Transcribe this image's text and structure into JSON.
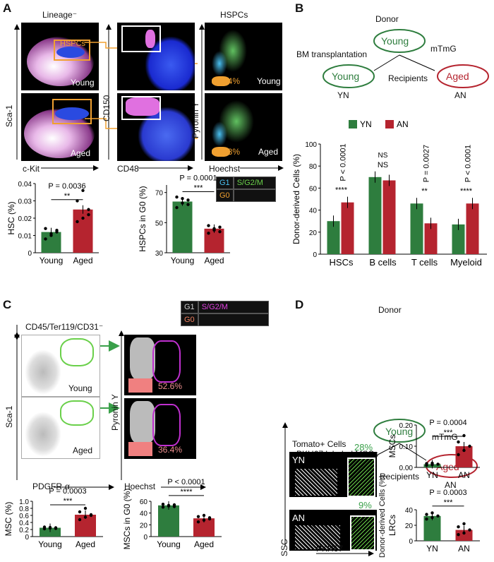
{
  "panels": {
    "A": {
      "label": "A",
      "lineage_label": "Lineage⁻",
      "hspc_gate_label": "HSPCs",
      "young": "Young",
      "aged": "Aged",
      "axis_sca1": "Sca-1",
      "axis_ckit": "c-Kit",
      "axis_cd150": "CD150",
      "axis_cd48": "CD48",
      "hspcs_title": "HSPCs",
      "axis_pyronin": "Pyronin Y",
      "axis_hoechst": "Hoechst",
      "pct_young": "64%",
      "pct_aged": "48%",
      "legend": {
        "g1": "G1",
        "sgm": "S/G2/M",
        "g0": "G0"
      }
    },
    "B": {
      "label": "B",
      "donor": "Donor",
      "young_mouse": "Young",
      "mtmg": "mTmG",
      "bm_transplant": "BM transplantation",
      "recipients": "Recipients",
      "aged_mouse": "Aged",
      "yn": "YN",
      "an": "AN"
    },
    "C": {
      "label": "C",
      "gate_label": "CD45/Ter119/CD31⁻",
      "young": "Young",
      "aged": "Aged",
      "axis_sca1": "Sca-1",
      "axis_pdgfra": "PDGFR-α",
      "axis_pyronin": "Pyronin Y",
      "axis_hoechst": "Hoechst",
      "pct_young": "52.6%",
      "pct_aged": "36.4%",
      "legend": {
        "g1": "G1",
        "sgm": "S/G2/M",
        "g0": "G0"
      }
    },
    "D": {
      "label": "D",
      "donor": "Donor",
      "young_mouse": "Young",
      "mtmg": "mTmG",
      "pkh_label": "PKH67 labeled MSCs",
      "recipients": "Recipients",
      "aged_mouse": "Aged",
      "yn": "YN",
      "an": "AN",
      "tomato_title": "Tomato+ Cells",
      "pct_yn": "28%",
      "pct_an": "9%",
      "axis_ssc": "SSC",
      "axis_pkh67": "PKH67"
    }
  },
  "colors": {
    "young": "#2e7d3e",
    "aged": "#b5242f",
    "orange": "#f0a030",
    "green_gate": "#6ad04a"
  },
  "chart_data": [
    {
      "id": "A1",
      "type": "bar",
      "categories": [
        "Young",
        "Aged"
      ],
      "values": [
        0.012,
        0.025
      ],
      "ylabel": "HSC (%)",
      "ylim": [
        0,
        0.04
      ],
      "yticks": [
        0,
        0.01,
        0.02,
        0.03,
        0.04
      ],
      "ytick_labels": [
        "0",
        "0.01",
        "0.02",
        "0.03",
        "0.04"
      ],
      "pvalue": "P = 0.0036",
      "stars": "**",
      "points": [
        [
          0.008,
          0.01,
          0.012,
          0.014,
          0.011,
          0.013
        ],
        [
          0.018,
          0.02,
          0.025,
          0.03,
          0.036,
          0.022
        ]
      ]
    },
    {
      "id": "A2",
      "type": "bar",
      "categories": [
        "Young",
        "Aged"
      ],
      "values": [
        64,
        46
      ],
      "ylabel": "HSPCs in G0 (%)",
      "ylim": [
        30,
        75
      ],
      "yticks": [
        30,
        50,
        70
      ],
      "ytick_labels": [
        "30",
        "50",
        "70"
      ],
      "pvalue": "P = 0.0001",
      "stars": "***",
      "points": [
        [
          60,
          63,
          65,
          67,
          66,
          62
        ],
        [
          43,
          45,
          47,
          48,
          46,
          44
        ]
      ]
    },
    {
      "id": "B1",
      "type": "bar",
      "categories": [
        "HSCs",
        "B cells",
        "T cells",
        "Myeloid"
      ],
      "series": [
        {
          "name": "YN",
          "values": [
            30,
            70,
            46,
            27
          ]
        },
        {
          "name": "AN",
          "values": [
            47,
            67,
            28,
            46
          ]
        }
      ],
      "ylabel": "Donor-derived Cells (%)",
      "ylim": [
        0,
        100
      ],
      "yticks": [
        0,
        20,
        40,
        60,
        80,
        100
      ],
      "ytick_labels": [
        "0",
        "20",
        "40",
        "60",
        "80",
        "100"
      ],
      "pvalues": [
        "P < 0.0001",
        "NS",
        "P = 0.0027",
        "P < 0.0001"
      ],
      "stars": [
        "****",
        "NS",
        "**",
        "****"
      ]
    },
    {
      "id": "C1",
      "type": "bar",
      "categories": [
        "Young",
        "Aged"
      ],
      "values": [
        0.25,
        0.62
      ],
      "ylabel": "MSC (%)",
      "ylim": [
        0,
        1.0
      ],
      "yticks": [
        0,
        0.2,
        0.4,
        0.6,
        0.8,
        1.0
      ],
      "ytick_labels": [
        "0",
        "0.2",
        "0.4",
        "0.6",
        "0.8",
        "1.0"
      ],
      "pvalue": "P = 0.0003",
      "stars": "***",
      "points": [
        [
          0.22,
          0.24,
          0.25,
          0.27,
          0.26,
          0.23
        ],
        [
          0.48,
          0.55,
          0.62,
          0.7,
          0.8,
          0.6
        ]
      ]
    },
    {
      "id": "C2",
      "type": "bar",
      "categories": [
        "Young",
        "Aged"
      ],
      "values": [
        53,
        31
      ],
      "ylabel": "MSCs in G0 (%)",
      "ylim": [
        0,
        60
      ],
      "yticks": [
        0,
        20,
        40,
        60
      ],
      "ytick_labels": [
        "0",
        "20",
        "40",
        "60"
      ],
      "pvalue": "P < 0.0001",
      "stars": "****",
      "points": [
        [
          50,
          52,
          54,
          55,
          53,
          51
        ],
        [
          25,
          28,
          30,
          34,
          36,
          32
        ]
      ]
    },
    {
      "id": "D1",
      "type": "bar",
      "categories": [
        "YN",
        "AN"
      ],
      "values": [
        0.015,
        0.1
      ],
      "ylabel": "MSCs",
      "ylim": [
        0,
        0.2
      ],
      "yticks": [
        0,
        0.1,
        0.2
      ],
      "ytick_labels": [
        "0.00",
        "0.10",
        "0.20"
      ],
      "pvalue": "P = 0.0004",
      "stars": "***",
      "points": [
        [
          0.01,
          0.013,
          0.015,
          0.018,
          0.02
        ],
        [
          0.06,
          0.08,
          0.1,
          0.12,
          0.15
        ]
      ]
    },
    {
      "id": "D2",
      "type": "bar",
      "categories": [
        "YN",
        "AN"
      ],
      "values": [
        32,
        14
      ],
      "ylabel": "LRCs",
      "ylim": [
        0,
        40
      ],
      "yticks": [
        0,
        20,
        40
      ],
      "ytick_labels": [
        "0",
        "20",
        "40"
      ],
      "pvalue": "P = 0.0003",
      "stars": "***",
      "points": [
        [
          28,
          30,
          32,
          34,
          36
        ],
        [
          8,
          10,
          14,
          18,
          22
        ]
      ]
    }
  ],
  "shared_ylabel_D": "Donor-derived Cells (%)"
}
